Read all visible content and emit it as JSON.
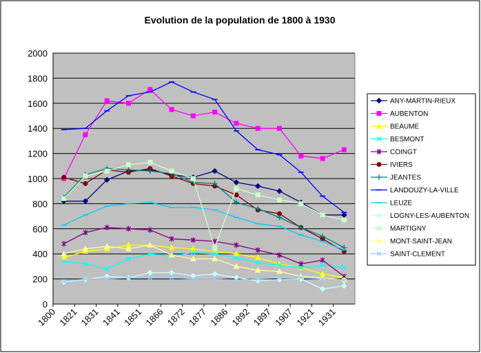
{
  "chart_data": {
    "type": "line",
    "title": "Evolution de la population de 1800 à 1930",
    "xlabel": "",
    "ylabel": "",
    "categories": [
      "1800",
      "1821",
      "1831",
      "1841",
      "1851",
      "1866",
      "1872",
      "1877",
      "1886",
      "1892",
      "1897",
      "1907",
      "1921",
      "1931"
    ],
    "ylim": [
      0,
      2000
    ],
    "yticks": [
      0,
      200,
      400,
      600,
      800,
      1000,
      1200,
      1400,
      1600,
      1800,
      2000
    ],
    "grid": true,
    "plot_background": "#c0c0c0",
    "legend_position": "right",
    "series": [
      {
        "name": "ANY-MARTIN-RIEUX",
        "color": "#000080",
        "marker": "diamond",
        "values": [
          820,
          820,
          990,
          1060,
          1070,
          1030,
          1010,
          1060,
          970,
          940,
          900,
          810,
          710,
          710
        ]
      },
      {
        "name": "AUBENTON",
        "color": "#ff00ff",
        "marker": "square",
        "values": [
          1000,
          1350,
          1620,
          1600,
          1710,
          1550,
          1500,
          1530,
          1440,
          1400,
          1400,
          1180,
          1160,
          1230
        ]
      },
      {
        "name": "BEAUME",
        "color": "#ffff00",
        "marker": "triangle",
        "values": [
          370,
          420,
          440,
          470,
          470,
          450,
          440,
          420,
          400,
          370,
          320,
          290,
          240,
          210
        ]
      },
      {
        "name": "BESMONT",
        "color": "#00ffff",
        "marker": "x",
        "values": [
          340,
          320,
          280,
          360,
          400,
          380,
          410,
          400,
          370,
          330,
          310,
          290,
          310,
          290
        ]
      },
      {
        "name": "COINGT",
        "color": "#800080",
        "marker": "star",
        "values": [
          480,
          570,
          610,
          600,
          590,
          520,
          510,
          500,
          470,
          430,
          390,
          320,
          350,
          220
        ]
      },
      {
        "name": "IVIERS",
        "color": "#800000",
        "marker": "circle",
        "values": [
          1010,
          960,
          1070,
          1050,
          1080,
          1020,
          960,
          940,
          870,
          750,
          720,
          610,
          520,
          420
        ]
      },
      {
        "name": "JEANTES",
        "color": "#008080",
        "marker": "plus",
        "values": [
          850,
          1030,
          1080,
          1070,
          1060,
          1040,
          970,
          960,
          810,
          760,
          690,
          610,
          540,
          450
        ]
      },
      {
        "name": "LANDOUZY-LA-VILLE",
        "color": "#0000ff",
        "marker": "dash",
        "values": [
          1390,
          1400,
          1540,
          1660,
          1690,
          1770,
          1690,
          1630,
          1380,
          1230,
          1190,
          1050,
          860,
          730
        ]
      },
      {
        "name": "LEUZE",
        "color": "#00ccff",
        "marker": "dash",
        "values": [
          630,
          710,
          780,
          800,
          810,
          770,
          770,
          750,
          690,
          640,
          620,
          550,
          500,
          430
        ]
      },
      {
        "name": "LOGNY-LES-AUBENTON",
        "color": "#ccffff",
        "marker": "diamond",
        "values": [
          175,
          195,
          220,
          210,
          250,
          250,
          225,
          240,
          210,
          185,
          195,
          200,
          120,
          145
        ]
      },
      {
        "name": "MARTIGNY",
        "color": "#ccffcc",
        "marker": "square",
        "values": [
          840,
          1020,
          1060,
          1110,
          1130,
          1060,
          1000,
          450,
          920,
          870,
          830,
          800,
          710,
          670
        ]
      },
      {
        "name": "MONT-SAINT-JEAN",
        "color": "#ffff99",
        "marker": "triangle",
        "values": [
          400,
          440,
          460,
          440,
          470,
          390,
          360,
          360,
          300,
          270,
          260,
          220,
          210,
          190
        ]
      },
      {
        "name": "SAINT-CLEMENT",
        "color": "#99ccff",
        "marker": "x",
        "values": [
          180,
          200,
          200,
          210,
          210,
          210,
          200,
          200,
          190,
          200,
          210,
          210,
          200,
          190
        ]
      }
    ]
  }
}
